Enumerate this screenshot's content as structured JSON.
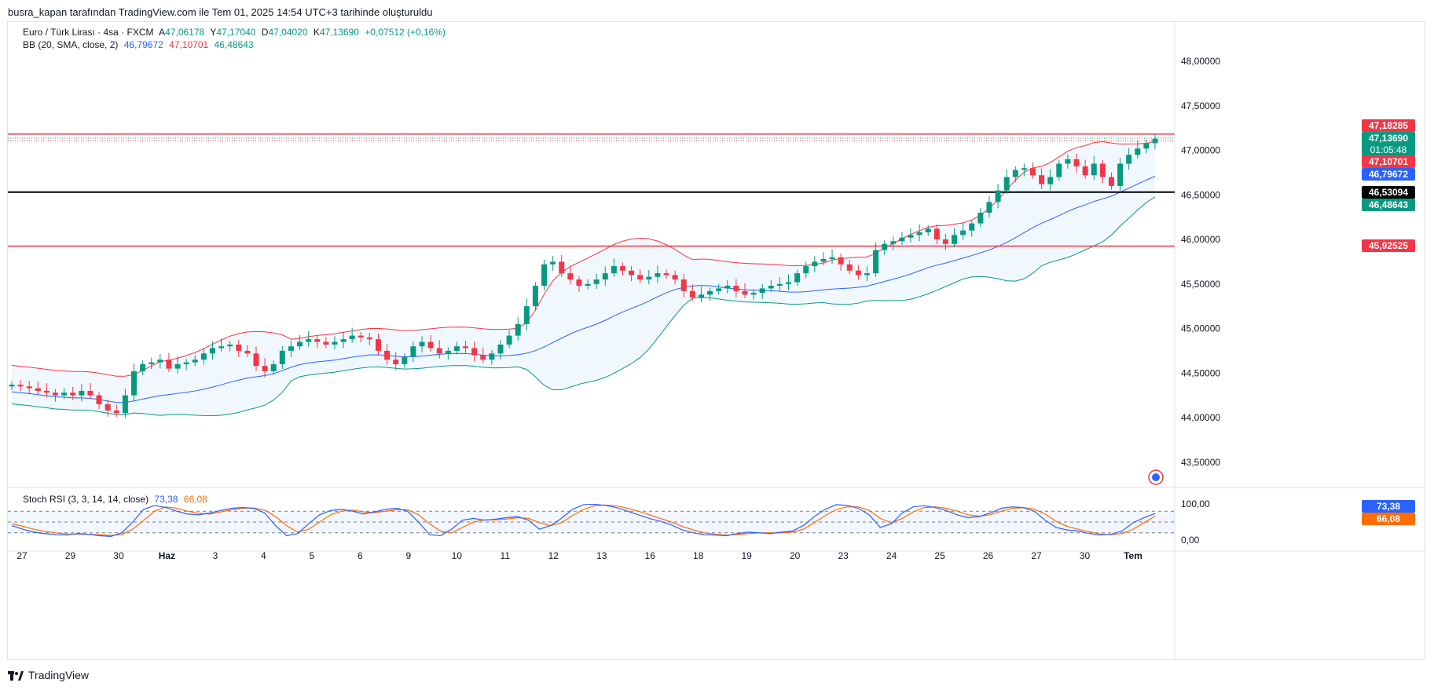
{
  "snapshot_caption": "busra_kapan tarafından TradingView.com ile Tem 01, 2025 14:54 UTC+3 tarihinde oluşturuldu",
  "brand": "TradingView",
  "colors": {
    "up": "#089981",
    "down": "#f23645",
    "bb_basis": "#2962ff",
    "bb_upper": "#f23645",
    "bb_lower": "#089981",
    "bb_fill": "#e3f2fd",
    "stoch_k": "#2962ff",
    "stoch_d": "#ff6d00",
    "hline_red": "#f23645",
    "hline_black": "#000000"
  },
  "legend": {
    "symbol": "Euro / Türk Lirası · 4sa · FXCM",
    "o_label": "A",
    "o_value": "47,06178",
    "h_label": "Y",
    "h_value": "47,17040",
    "l_label": "D",
    "l_value": "47,04020",
    "c_label": "K",
    "c_value": "47,13690",
    "change": "+0,07512 (+0,16%)",
    "bb_label": "BB (20, SMA, close, 2)",
    "bb_basis": "46,79672",
    "bb_upper": "47,10701",
    "bb_lower": "46,48643",
    "stoch_label": "Stoch RSI (3, 3, 14, 14, close)",
    "stoch_k": "73,38",
    "stoch_d": "66,08"
  },
  "price_labels": {
    "hline_top": "47,18285",
    "last_price": "47,13690",
    "countdown": "01:05:48",
    "bb_upper": "47,10701",
    "bb_basis": "46,79672",
    "hline_black": "46,53094",
    "bb_lower": "46,48643",
    "hline_bottom": "45,92525",
    "stoch_k": "73,38",
    "stoch_d": "66,08"
  },
  "chart_data": {
    "type": "candlestick",
    "y_ticks": [
      "48,00000",
      "47,50000",
      "47,00000",
      "46,50000",
      "46,00000",
      "45,50000",
      "45,00000",
      "44,50000",
      "44,00000",
      "43,50000"
    ],
    "y_tick_values": [
      48.0,
      47.5,
      47.0,
      46.5,
      46.0,
      45.5,
      45.0,
      44.5,
      44.0,
      43.5
    ],
    "x_ticks": [
      "27",
      "29",
      "30",
      "Haz",
      "3",
      "4",
      "5",
      "6",
      "9",
      "10",
      "11",
      "12",
      "13",
      "16",
      "18",
      "19",
      "20",
      "23",
      "24",
      "25",
      "26",
      "27",
      "30",
      "Tem"
    ],
    "horizontal_lines": [
      47.18285,
      46.53094,
      45.92525
    ],
    "close": [
      44.37,
      44.35,
      44.33,
      44.3,
      44.28,
      44.25,
      44.28,
      44.25,
      44.3,
      44.25,
      44.15,
      44.08,
      44.05,
      44.25,
      44.52,
      44.6,
      44.62,
      44.65,
      44.55,
      44.6,
      44.62,
      44.65,
      44.72,
      44.78,
      44.8,
      44.82,
      44.75,
      44.72,
      44.58,
      44.52,
      44.6,
      44.75,
      44.8,
      44.85,
      44.88,
      44.85,
      44.82,
      44.85,
      44.88,
      44.92,
      44.9,
      44.88,
      44.75,
      44.65,
      44.6,
      44.68,
      44.8,
      44.85,
      44.78,
      44.72,
      44.75,
      44.8,
      44.78,
      44.7,
      44.65,
      44.72,
      44.82,
      44.92,
      45.05,
      45.25,
      45.48,
      45.72,
      45.75,
      45.62,
      45.55,
      45.48,
      45.5,
      45.55,
      45.62,
      45.7,
      45.65,
      45.6,
      45.55,
      45.58,
      45.62,
      45.6,
      45.55,
      45.42,
      45.35,
      45.38,
      45.42,
      45.45,
      45.48,
      45.42,
      45.38,
      45.4,
      45.45,
      45.48,
      45.5,
      45.52,
      45.62,
      45.7,
      45.75,
      45.78,
      45.8,
      45.72,
      45.65,
      45.6,
      45.62,
      45.88,
      45.95,
      45.98,
      46.02,
      46.05,
      46.08,
      46.12,
      46.0,
      45.95,
      46.05,
      46.1,
      46.18,
      46.3,
      46.42,
      46.55,
      46.7,
      46.78,
      46.8,
      46.72,
      46.62,
      46.7,
      46.85,
      46.9,
      46.82,
      46.72,
      46.85,
      46.7,
      46.6,
      46.85,
      46.95,
      47.02,
      47.08,
      47.13
    ],
    "stoch_k": [
      40,
      30,
      22,
      18,
      15,
      14,
      18,
      16,
      12,
      10,
      20,
      50,
      85,
      96,
      90,
      80,
      72,
      70,
      75,
      82,
      88,
      90,
      88,
      75,
      40,
      12,
      18,
      45,
      70,
      82,
      85,
      80,
      72,
      78,
      85,
      88,
      80,
      50,
      15,
      12,
      30,
      55,
      60,
      55,
      58,
      62,
      65,
      55,
      30,
      40,
      60,
      85,
      98,
      99,
      96,
      90,
      80,
      70,
      60,
      52,
      42,
      28,
      20,
      15,
      14,
      12,
      18,
      22,
      20,
      18,
      22,
      25,
      40,
      65,
      85,
      98,
      96,
      88,
      70,
      35,
      45,
      75,
      92,
      95,
      90,
      82,
      70,
      62,
      65,
      75,
      88,
      92,
      90,
      80,
      55,
      35,
      28,
      25,
      18,
      14,
      16,
      25,
      48,
      62,
      73.38
    ],
    "stoch_d": [
      45,
      38,
      30,
      24,
      20,
      17,
      16,
      16,
      15,
      13,
      15,
      30,
      55,
      80,
      92,
      88,
      80,
      74,
      72,
      78,
      84,
      88,
      89,
      83,
      65,
      40,
      22,
      30,
      50,
      70,
      80,
      83,
      78,
      76,
      80,
      84,
      84,
      70,
      45,
      25,
      20,
      35,
      50,
      56,
      56,
      58,
      62,
      60,
      48,
      40,
      48,
      68,
      85,
      95,
      97,
      95,
      88,
      80,
      70,
      60,
      50,
      38,
      28,
      20,
      16,
      14,
      15,
      18,
      20,
      20,
      20,
      22,
      30,
      48,
      68,
      85,
      92,
      92,
      82,
      60,
      48,
      60,
      78,
      90,
      92,
      88,
      80,
      70,
      66,
      70,
      80,
      88,
      90,
      86,
      72,
      52,
      38,
      30,
      23,
      17,
      15,
      18,
      30,
      48,
      66.08
    ]
  }
}
